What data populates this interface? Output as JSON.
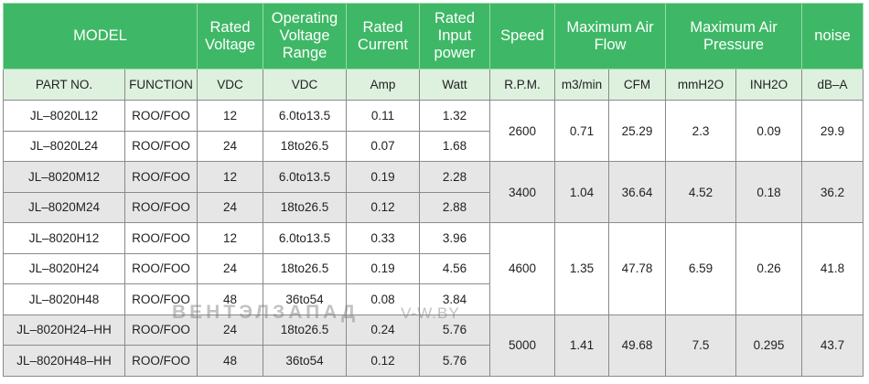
{
  "header": {
    "model": "MODEL",
    "rated_voltage": "Rated Voltage",
    "operating_voltage": "Operating Voltage Range",
    "rated_current": "Rated Current",
    "rated_input_power": "Rated Input power",
    "speed": "Speed",
    "max_air_flow": "Maximum Air Flow",
    "max_air_pressure": "Maximum Air Pressure",
    "noise": "noise"
  },
  "units": {
    "part_no": "PART NO.",
    "function": "FUNCTION",
    "rated_voltage": "VDC",
    "operating_voltage": "VDC",
    "current": "Amp",
    "power": "Watt",
    "speed": "R.P.M.",
    "flow_m3": "m3/min",
    "flow_cfm": "CFM",
    "pressure_mm": "mmH2O",
    "pressure_in": "INH2O",
    "noise": "dB–A"
  },
  "rows": [
    {
      "part": "JL–8020L12",
      "function": "ROO/FOO",
      "voltage": "12",
      "range": "6.0to13.5",
      "current": "0.11",
      "power": "1.32"
    },
    {
      "part": "JL–8020L24",
      "function": "ROO/FOO",
      "voltage": "24",
      "range": "18to26.5",
      "current": "0.07",
      "power": "1.68"
    },
    {
      "part": "JL–8020M12",
      "function": "ROO/FOO",
      "voltage": "12",
      "range": "6.0to13.5",
      "current": "0.19",
      "power": "2.28"
    },
    {
      "part": "JL–8020M24",
      "function": "ROO/FOO",
      "voltage": "24",
      "range": "18to26.5",
      "current": "0.12",
      "power": "2.88"
    },
    {
      "part": "JL–8020H12",
      "function": "ROO/FOO",
      "voltage": "12",
      "range": "6.0to13.5",
      "current": "0.33",
      "power": "3.96"
    },
    {
      "part": "JL–8020H24",
      "function": "ROO/FOO",
      "voltage": "24",
      "range": "18to26.5",
      "current": "0.19",
      "power": "4.56"
    },
    {
      "part": "JL–8020H48",
      "function": "ROO/FOO",
      "voltage": "48",
      "range": "36to54",
      "current": "0.08",
      "power": "3.84"
    },
    {
      "part": "JL–8020H24–HH",
      "function": "ROO/FOO",
      "voltage": "24",
      "range": "18to26.5",
      "current": "0.24",
      "power": "5.76"
    },
    {
      "part": "JL–8020H48–HH",
      "function": "ROO/FOO",
      "voltage": "48",
      "range": "36to54",
      "current": "0.12",
      "power": "5.76"
    }
  ],
  "groups": [
    {
      "rpm": "2600",
      "m3": "0.71",
      "cfm": "25.29",
      "mm": "2.3",
      "inch": "0.09",
      "noise": "29.9"
    },
    {
      "rpm": "3400",
      "m3": "1.04",
      "cfm": "36.64",
      "mm": "4.52",
      "inch": "0.18",
      "noise": "36.2"
    },
    {
      "rpm": "4600",
      "m3": "1.35",
      "cfm": "47.78",
      "mm": "6.59",
      "inch": "0.26",
      "noise": "41.8"
    },
    {
      "rpm": "5000",
      "m3": "1.41",
      "cfm": "49.68",
      "mm": "7.5",
      "inch": "0.295",
      "noise": "43.7"
    }
  ],
  "watermark": {
    "brand": "ВЕНТЭЛЗАПАД",
    "url": "V-W.BY"
  },
  "colors": {
    "header_green": "#3eb866",
    "subheader_green": "#ddf1de",
    "row_grey": "#e6e6e6"
  }
}
